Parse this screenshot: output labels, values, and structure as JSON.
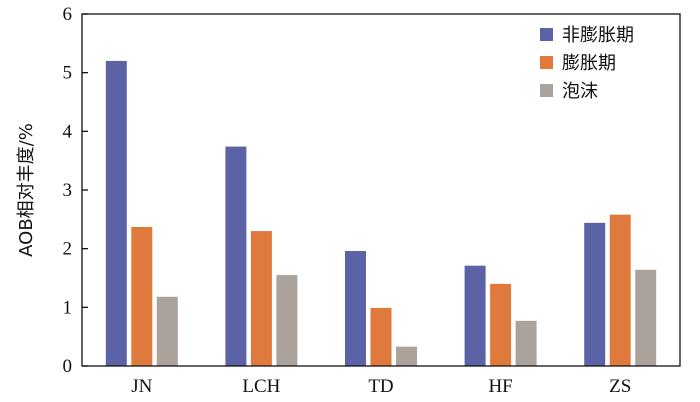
{
  "chart_data": {
    "type": "bar",
    "categories": [
      "JN",
      "LCH",
      "TD",
      "HF",
      "ZS"
    ],
    "series": [
      {
        "name": "非膨胀期",
        "color": "#5b63a6",
        "values": [
          5.2,
          3.74,
          1.96,
          1.71,
          2.44
        ]
      },
      {
        "name": "膨胀期",
        "color": "#e07a3c",
        "values": [
          2.37,
          2.3,
          0.99,
          1.4,
          2.58
        ]
      },
      {
        "name": "泡沫",
        "color": "#aca29c",
        "values": [
          1.18,
          1.55,
          0.33,
          0.77,
          1.64
        ]
      }
    ],
    "ylabel": "AOB相对丰度/%",
    "xlabel": "",
    "ylim": [
      0,
      6
    ],
    "yticks": [
      0,
      1,
      2,
      3,
      4,
      5,
      6
    ],
    "grid": false,
    "legend_position": "top-right"
  }
}
